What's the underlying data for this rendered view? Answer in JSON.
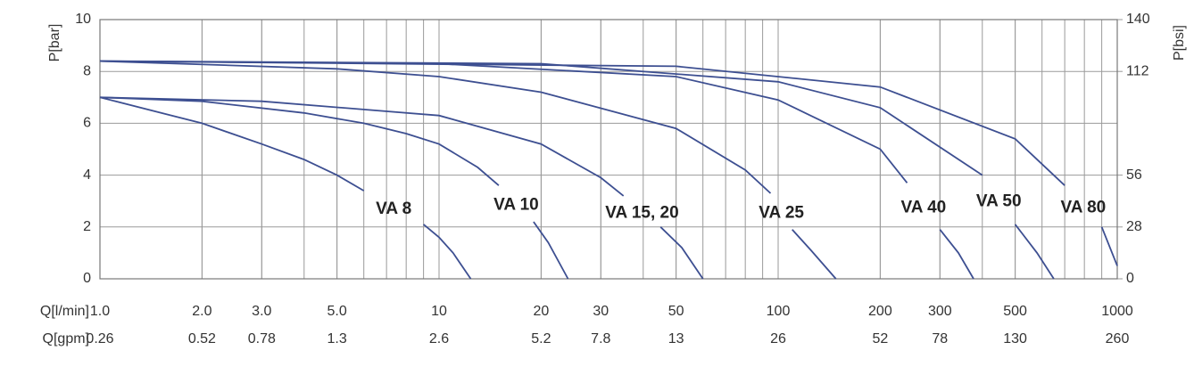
{
  "chart_data": {
    "type": "line",
    "ylabel": "P[bar]",
    "y2label": "P[bsi]",
    "xlabel": "Q[l/min]",
    "x2label": "Q[gpm]",
    "xscale": "log",
    "xlim": [
      1,
      1000
    ],
    "xticks": [
      {
        "value": 1,
        "label": "1.0"
      },
      {
        "value": 2,
        "label": "2.0"
      },
      {
        "value": 3,
        "label": "3.0"
      },
      {
        "value": 5,
        "label": "5.0"
      },
      10,
      20,
      30,
      50,
      100,
      200,
      300,
      500,
      1000
    ],
    "x2lim": [
      0.26,
      260
    ],
    "x2ticks": [
      0.26,
      0.52,
      0.78,
      1.3,
      2.6,
      5.2,
      7.8,
      13,
      26,
      52,
      78,
      130,
      260
    ],
    "ylim": [
      0,
      10
    ],
    "yticks": [
      0,
      2,
      4,
      6,
      8,
      10
    ],
    "y2lim": [
      0,
      140
    ],
    "y2ticks": [
      0,
      28,
      56,
      112,
      140
    ],
    "grid": true,
    "series": [
      {
        "name": "VA 8",
        "color": "#3d4f91",
        "x": [
          1,
          2,
          3,
          4,
          5,
          6,
          null,
          9,
          10,
          11,
          12.4
        ],
        "values": [
          7.0,
          6.0,
          5.2,
          4.6,
          4.0,
          3.4,
          null,
          2.1,
          1.6,
          1.0,
          0
        ]
      },
      {
        "name": "VA 10",
        "color": "#3d4f91",
        "x": [
          1,
          2,
          4,
          6,
          8,
          10,
          13,
          15,
          null,
          19,
          21,
          24
        ],
        "values": [
          7.0,
          6.85,
          6.4,
          6.0,
          5.6,
          5.2,
          4.3,
          3.6,
          null,
          2.2,
          1.4,
          0
        ]
      },
      {
        "name": "VA 15, 20",
        "color": "#3d4f91",
        "x": [
          1,
          3,
          10,
          20,
          30,
          35,
          null,
          45,
          52,
          60
        ],
        "values": [
          7.0,
          6.85,
          6.3,
          5.2,
          3.9,
          3.2,
          null,
          2.0,
          1.2,
          0
        ]
      },
      {
        "name": "VA 25",
        "color": "#3d4f91",
        "x": [
          1,
          5,
          10,
          20,
          50,
          80,
          95,
          null,
          110,
          125,
          148
        ],
        "values": [
          8.4,
          8.1,
          7.8,
          7.2,
          5.8,
          4.2,
          3.3,
          null,
          1.9,
          1.1,
          0
        ]
      },
      {
        "name": "VA 40",
        "color": "#3d4f91",
        "x": [
          1,
          10,
          50,
          100,
          200,
          240,
          null,
          300,
          340,
          377
        ],
        "values": [
          8.4,
          8.3,
          7.8,
          6.9,
          5.0,
          3.7,
          null,
          1.9,
          1.0,
          0
        ]
      },
      {
        "name": "VA 50",
        "color": "#3d4f91",
        "x": [
          1,
          20,
          100,
          200,
          400,
          null,
          500,
          580,
          650
        ],
        "values": [
          8.4,
          8.3,
          7.6,
          6.6,
          4.0,
          null,
          2.1,
          1.0,
          0
        ]
      },
      {
        "name": "VA 80",
        "color": "#3d4f91",
        "x": [
          1,
          50,
          200,
          500,
          700,
          null,
          900,
          1000
        ],
        "values": [
          8.4,
          8.2,
          7.4,
          5.4,
          3.6,
          null,
          2.0,
          0.5
        ]
      }
    ]
  }
}
